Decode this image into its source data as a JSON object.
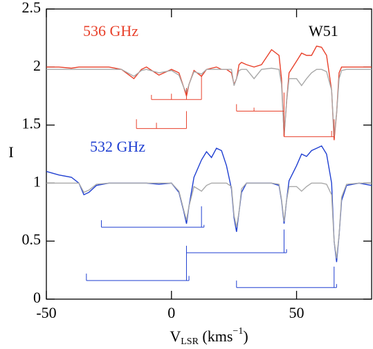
{
  "chart_data": {
    "type": "line",
    "x": [
      -50,
      -45,
      -40,
      -37,
      -35,
      -33,
      -30,
      -25,
      -20,
      -15,
      -12,
      -10,
      -5,
      0,
      3,
      5,
      6,
      7,
      9,
      12,
      14,
      16,
      18,
      20,
      22,
      24,
      25,
      26,
      27,
      28,
      30,
      33,
      36,
      40,
      43,
      44,
      45,
      46,
      47,
      50,
      52,
      54,
      56,
      58,
      60,
      62,
      64,
      65,
      66,
      67,
      68,
      70,
      75,
      80
    ],
    "series": [
      {
        "color": "#e8412b",
        "values": [
          2.0,
          2.0,
          1.99,
          2.0,
          2.0,
          2.0,
          2.0,
          2.0,
          1.98,
          1.9,
          1.98,
          2.0,
          1.93,
          1.98,
          1.95,
          1.82,
          1.75,
          1.85,
          1.97,
          1.92,
          1.98,
          1.99,
          2.0,
          1.98,
          1.98,
          1.95,
          1.85,
          1.9,
          2.02,
          2.04,
          2.02,
          2.0,
          2.02,
          2.15,
          2.1,
          1.9,
          1.4,
          1.7,
          1.95,
          2.05,
          2.12,
          2.1,
          2.1,
          2.18,
          2.17,
          2.1,
          1.8,
          1.37,
          1.6,
          1.95,
          2.0,
          2.0,
          2.0,
          2.0
        ]
      },
      {
        "color": "#a8a8a8",
        "values": [
          1.98,
          1.98,
          1.98,
          1.98,
          1.98,
          1.98,
          1.98,
          1.98,
          1.98,
          1.92,
          1.97,
          1.98,
          1.95,
          1.97,
          1.93,
          1.82,
          1.78,
          1.85,
          1.96,
          1.94,
          1.98,
          1.98,
          1.98,
          1.98,
          1.98,
          1.98,
          1.84,
          1.9,
          1.97,
          1.98,
          1.98,
          1.9,
          1.98,
          1.99,
          1.98,
          1.85,
          1.42,
          1.7,
          1.9,
          1.9,
          1.84,
          1.9,
          1.95,
          1.98,
          1.98,
          1.96,
          1.8,
          1.4,
          1.6,
          1.9,
          1.97,
          1.98,
          1.98,
          1.98
        ]
      },
      {
        "color": "#1f3fd1",
        "values": [
          1.1,
          1.07,
          1.05,
          1.0,
          0.9,
          0.92,
          0.98,
          1.0,
          1.0,
          1.0,
          1.0,
          1.0,
          0.99,
          1.0,
          0.92,
          0.75,
          0.65,
          0.8,
          1.05,
          1.2,
          1.27,
          1.22,
          1.3,
          1.28,
          1.15,
          0.95,
          0.7,
          0.58,
          0.75,
          0.92,
          1.0,
          1.0,
          1.0,
          1.0,
          0.98,
          0.85,
          0.65,
          0.85,
          1.02,
          1.15,
          1.25,
          1.23,
          1.28,
          1.3,
          1.32,
          1.25,
          1.0,
          0.5,
          0.32,
          0.55,
          0.85,
          0.98,
          1.0,
          0.98
        ]
      },
      {
        "color": "#a8a8a8",
        "values": [
          1.0,
          1.0,
          1.0,
          1.0,
          0.92,
          0.94,
          0.99,
          1.0,
          1.0,
          1.0,
          1.0,
          1.0,
          1.0,
          1.0,
          0.93,
          0.76,
          0.68,
          0.8,
          0.97,
          0.93,
          0.98,
          1.0,
          1.0,
          1.0,
          1.0,
          0.97,
          0.72,
          0.62,
          0.75,
          0.95,
          1.0,
          1.0,
          1.0,
          1.0,
          0.99,
          0.86,
          0.67,
          0.85,
          0.97,
          0.97,
          0.93,
          0.97,
          1.0,
          1.0,
          1.0,
          0.99,
          0.9,
          0.5,
          0.35,
          0.55,
          0.88,
          0.99,
          1.0,
          1.0
        ]
      }
    ],
    "combs": [
      {
        "color": "#e8412b",
        "y": 1.72,
        "lines": [
          {
            "x": -8,
            "top": 1.76
          },
          {
            "x": 0,
            "top": 1.77
          },
          {
            "x": 6,
            "top": 1.82
          },
          {
            "x": 12,
            "top": 1.93
          }
        ]
      },
      {
        "color": "#e8412b",
        "y": 1.47,
        "lines": [
          {
            "x": -14,
            "top": 1.55
          },
          {
            "x": -6,
            "top": 1.52
          },
          {
            "x": 6,
            "top": 1.62
          }
        ]
      },
      {
        "color": "#e8412b",
        "y": 1.62,
        "lines": [
          {
            "x": 26,
            "top": 1.68
          },
          {
            "x": 33,
            "top": 1.65
          },
          {
            "x": 45,
            "top": 1.78
          }
        ]
      },
      {
        "color": "#e8412b",
        "y": 1.4,
        "lines": [
          {
            "x": 45,
            "top": 1.62
          },
          {
            "x": 64,
            "top": 1.45
          },
          {
            "x": 65,
            "top": 1.55
          }
        ]
      },
      {
        "color": "#1f3fd1",
        "y": 0.62,
        "lines": [
          {
            "x": -28,
            "top": 0.68
          },
          {
            "x": 12,
            "top": 0.8
          },
          {
            "x": 13,
            "top": 0.64
          }
        ]
      },
      {
        "color": "#1f3fd1",
        "y": 0.4,
        "lines": [
          {
            "x": 6,
            "top": 0.46
          },
          {
            "x": 45,
            "top": 0.6
          },
          {
            "x": 46,
            "top": 0.43
          }
        ]
      },
      {
        "color": "#1f3fd1",
        "y": 0.16,
        "lines": [
          {
            "x": -34,
            "top": 0.22
          },
          {
            "x": 6,
            "top": 0.4
          },
          {
            "x": 7,
            "top": 0.2
          }
        ]
      },
      {
        "color": "#1f3fd1",
        "y": 0.1,
        "lines": [
          {
            "x": 26,
            "top": 0.16
          },
          {
            "x": 65,
            "top": 0.28
          },
          {
            "x": 66,
            "top": 0.13
          }
        ]
      }
    ],
    "annotations": [
      {
        "text": "536 GHz",
        "color": "#e8412b"
      },
      {
        "text": "W51",
        "color": "#000000"
      },
      {
        "text": "532 GHz",
        "color": "#1f3fd1"
      }
    ],
    "xlabel": {
      "main": "V",
      "sub": "LSR",
      "unit": " (kms",
      "sup": "−1",
      "close": ")"
    },
    "ylabel": "I",
    "xlim": [
      -50,
      80
    ],
    "xticks": [
      -50,
      0,
      50
    ],
    "ylim": [
      0,
      2.5
    ],
    "yticks": [
      0,
      0.5,
      1,
      1.5,
      2,
      2.5
    ]
  }
}
